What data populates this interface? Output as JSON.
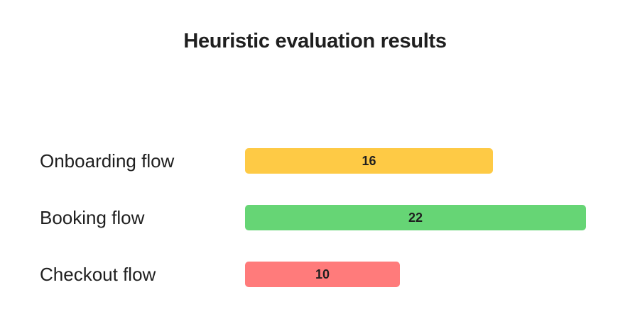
{
  "chart_data": {
    "type": "bar",
    "orientation": "horizontal",
    "title": "Heuristic evaluation results",
    "xlabel": "",
    "ylabel": "",
    "categories": [
      "Onboarding flow",
      "Booking flow",
      "Checkout flow"
    ],
    "values": [
      16,
      22,
      10
    ],
    "colors": [
      "#FECA45",
      "#66D575",
      "#FF7B7B"
    ],
    "xlim": [
      0,
      22
    ],
    "grid": false,
    "legend": "none"
  }
}
